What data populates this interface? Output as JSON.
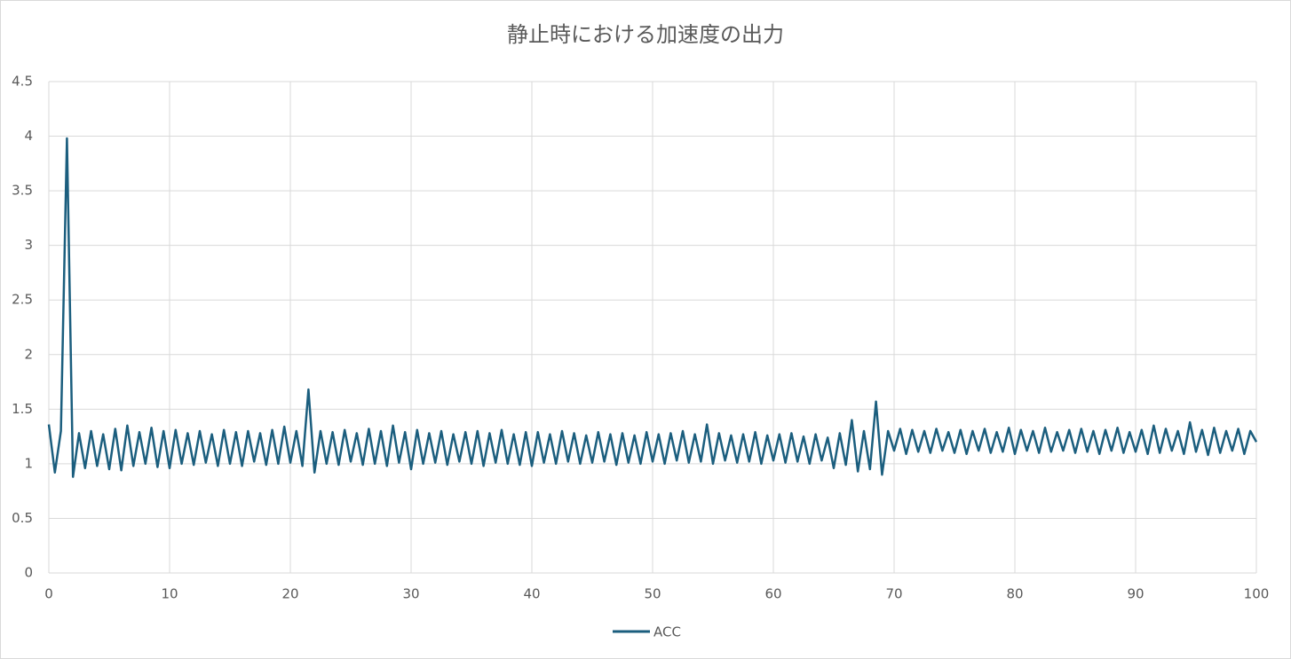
{
  "chart_data": {
    "type": "line",
    "title": "静止時における加速度の出力",
    "x": [
      0,
      0.5,
      1,
      1.5,
      2,
      2.5,
      3,
      3.5,
      4,
      4.5,
      5,
      5.5,
      6,
      6.5,
      7,
      7.5,
      8,
      8.5,
      9,
      9.5,
      10,
      10.5,
      11,
      11.5,
      12,
      12.5,
      13,
      13.5,
      14,
      14.5,
      15,
      15.5,
      16,
      16.5,
      17,
      17.5,
      18,
      18.5,
      19,
      19.5,
      20,
      20.5,
      21,
      21.5,
      22,
      22.5,
      23,
      23.5,
      24,
      24.5,
      25,
      25.5,
      26,
      26.5,
      27,
      27.5,
      28,
      28.5,
      29,
      29.5,
      30,
      30.5,
      31,
      31.5,
      32,
      32.5,
      33,
      33.5,
      34,
      34.5,
      35,
      35.5,
      36,
      36.5,
      37,
      37.5,
      38,
      38.5,
      39,
      39.5,
      40,
      40.5,
      41,
      41.5,
      42,
      42.5,
      43,
      43.5,
      44,
      44.5,
      45,
      45.5,
      46,
      46.5,
      47,
      47.5,
      48,
      48.5,
      49,
      49.5,
      50,
      50.5,
      51,
      51.5,
      52,
      52.5,
      53,
      53.5,
      54,
      54.5,
      55,
      55.5,
      56,
      56.5,
      57,
      57.5,
      58,
      58.5,
      59,
      59.5,
      60,
      60.5,
      61,
      61.5,
      62,
      62.5,
      63,
      63.5,
      64,
      64.5,
      65,
      65.5,
      66,
      66.5,
      67,
      67.5,
      68,
      68.5,
      69,
      69.5,
      70,
      70.5,
      71,
      71.5,
      72,
      72.5,
      73,
      73.5,
      74,
      74.5,
      75,
      75.5,
      76,
      76.5,
      77,
      77.5,
      78,
      78.5,
      79,
      79.5,
      80,
      80.5,
      81,
      81.5,
      82,
      82.5,
      83,
      83.5,
      84,
      84.5,
      85,
      85.5,
      86,
      86.5,
      87,
      87.5,
      88,
      88.5,
      89,
      89.5,
      90,
      90.5,
      91,
      91.5,
      92,
      92.5,
      93,
      93.5,
      94,
      94.5,
      95,
      95.5,
      96,
      96.5,
      97,
      97.5,
      98,
      98.5,
      99,
      99.5,
      100
    ],
    "series": [
      {
        "name": "ACC",
        "color": "#1b5e7e",
        "values": [
          1.36,
          0.92,
          1.3,
          3.98,
          0.88,
          1.28,
          0.96,
          1.3,
          0.98,
          1.27,
          0.95,
          1.32,
          0.94,
          1.35,
          0.98,
          1.29,
          1.0,
          1.33,
          0.97,
          1.3,
          0.96,
          1.31,
          1.0,
          1.28,
          0.99,
          1.3,
          1.01,
          1.27,
          0.98,
          1.31,
          1.0,
          1.29,
          0.98,
          1.3,
          1.02,
          1.28,
          0.99,
          1.31,
          1.0,
          1.34,
          1.01,
          1.3,
          0.98,
          1.68,
          0.92,
          1.3,
          1.0,
          1.29,
          0.99,
          1.31,
          1.02,
          1.28,
          0.99,
          1.32,
          1.0,
          1.3,
          0.98,
          1.35,
          1.01,
          1.29,
          0.95,
          1.31,
          1.0,
          1.28,
          1.01,
          1.3,
          0.99,
          1.27,
          1.02,
          1.29,
          1.0,
          1.3,
          0.98,
          1.28,
          1.01,
          1.31,
          1.0,
          1.27,
          0.99,
          1.29,
          0.98,
          1.29,
          1.01,
          1.27,
          1.0,
          1.3,
          1.02,
          1.28,
          1.0,
          1.26,
          1.01,
          1.29,
          1.02,
          1.27,
          0.99,
          1.28,
          1.01,
          1.26,
          1.0,
          1.29,
          1.02,
          1.27,
          1.0,
          1.28,
          1.03,
          1.3,
          1.01,
          1.27,
          1.02,
          1.36,
          1.0,
          1.28,
          1.03,
          1.26,
          1.01,
          1.27,
          1.02,
          1.29,
          1.0,
          1.26,
          1.03,
          1.27,
          1.01,
          1.28,
          1.02,
          1.25,
          1.0,
          1.27,
          1.03,
          1.24,
          0.96,
          1.28,
          0.99,
          1.4,
          0.93,
          1.3,
          0.95,
          1.57,
          0.9,
          1.3,
          1.12,
          1.32,
          1.09,
          1.31,
          1.11,
          1.3,
          1.1,
          1.32,
          1.12,
          1.29,
          1.1,
          1.31,
          1.09,
          1.3,
          1.12,
          1.32,
          1.1,
          1.29,
          1.11,
          1.33,
          1.09,
          1.31,
          1.12,
          1.3,
          1.1,
          1.33,
          1.11,
          1.29,
          1.12,
          1.31,
          1.1,
          1.32,
          1.11,
          1.3,
          1.09,
          1.31,
          1.12,
          1.33,
          1.1,
          1.29,
          1.11,
          1.31,
          1.09,
          1.35,
          1.1,
          1.32,
          1.12,
          1.3,
          1.09,
          1.38,
          1.11,
          1.31,
          1.08,
          1.33,
          1.1,
          1.3,
          1.12,
          1.32,
          1.09,
          1.3,
          1.2
        ]
      }
    ],
    "xlim": [
      0,
      100
    ],
    "xticks": [
      0,
      10,
      20,
      30,
      40,
      50,
      60,
      70,
      80,
      90,
      100
    ],
    "ylim": [
      0,
      4.5
    ],
    "yticks": [
      0,
      0.5,
      1,
      1.5,
      2,
      2.5,
      3,
      3.5,
      4,
      4.5
    ],
    "grid": true,
    "legend": "bottom"
  }
}
